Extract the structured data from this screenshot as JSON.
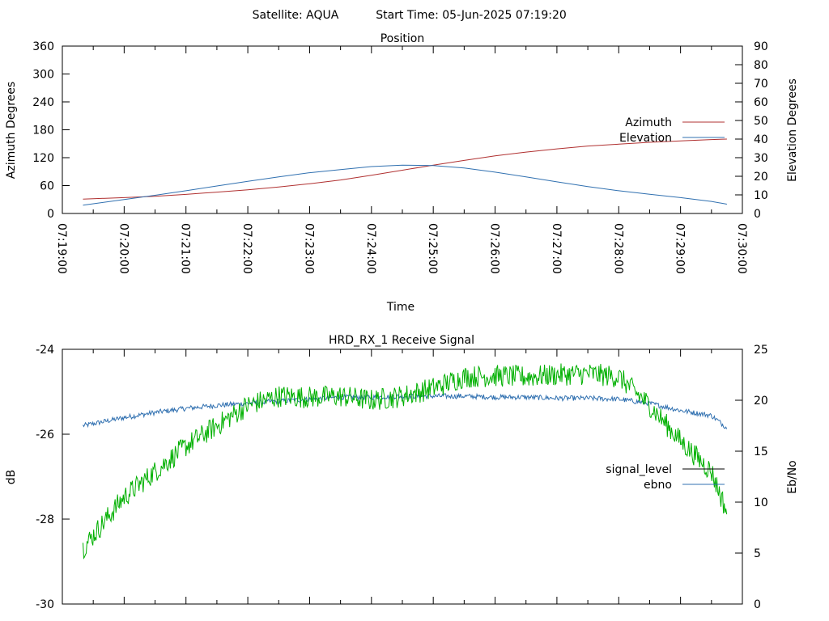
{
  "header": {
    "satellite": "Satellite: AQUA",
    "start_time": "Start Time: 05-Jun-2025 07:19:20"
  },
  "chart_data": [
    {
      "type": "line",
      "title": "Position",
      "xlabel": "Time",
      "ylabel": "Azimuth Degrees",
      "y2label": "Elevation Degrees",
      "x_ticks": [
        "07:19:00",
        "07:20:00",
        "07:21:00",
        "07:22:00",
        "07:23:00",
        "07:24:00",
        "07:25:00",
        "07:26:00",
        "07:27:00",
        "07:28:00",
        "07:29:00",
        "07:30:00"
      ],
      "xlim": [
        "07:19:00",
        "07:30:00"
      ],
      "ylim": [
        0,
        360
      ],
      "y_ticks": [
        0,
        60,
        120,
        180,
        240,
        300,
        360
      ],
      "y2lim": [
        0,
        90
      ],
      "y2_ticks": [
        0,
        10,
        20,
        30,
        40,
        50,
        60,
        70,
        80,
        90
      ],
      "legend_position": "right",
      "series": [
        {
          "name": "Azimuth",
          "axis": "y",
          "color": "#b03030",
          "x": [
            "07:19:20",
            "07:20:00",
            "07:20:30",
            "07:21:00",
            "07:21:30",
            "07:22:00",
            "07:22:30",
            "07:23:00",
            "07:23:30",
            "07:24:00",
            "07:24:30",
            "07:25:00",
            "07:25:30",
            "07:26:00",
            "07:26:30",
            "07:27:00",
            "07:27:30",
            "07:28:00",
            "07:28:30",
            "07:29:00",
            "07:29:30",
            "07:29:45"
          ],
          "values": [
            31,
            34,
            37,
            41,
            46,
            51,
            57,
            64,
            72,
            82,
            93,
            104,
            114,
            124,
            132,
            139,
            145,
            149,
            153,
            156,
            159,
            160
          ]
        },
        {
          "name": "Elevation",
          "axis": "y2",
          "color": "#3070b0",
          "x": [
            "07:19:20",
            "07:20:00",
            "07:20:30",
            "07:21:00",
            "07:21:30",
            "07:22:00",
            "07:22:30",
            "07:23:00",
            "07:23:30",
            "07:24:00",
            "07:24:30",
            "07:25:00",
            "07:25:30",
            "07:26:00",
            "07:26:30",
            "07:27:00",
            "07:27:30",
            "07:28:00",
            "07:28:30",
            "07:29:00",
            "07:29:30",
            "07:29:45"
          ],
          "values": [
            4.5,
            7.5,
            9.8,
            12.2,
            14.8,
            17.3,
            19.7,
            21.9,
            23.6,
            25.2,
            26,
            25.8,
            24.5,
            22.2,
            19.7,
            17,
            14.5,
            12.2,
            10.3,
            8.5,
            6.5,
            5
          ]
        }
      ]
    },
    {
      "type": "line",
      "title": "HRD_RX_1 Receive Signal",
      "xlabel": "",
      "ylabel": "dB",
      "y2label": "Eb/No",
      "xlim": [
        "07:19:00",
        "07:30:00"
      ],
      "ylim": [
        -30,
        -24
      ],
      "y_ticks": [
        -30,
        -28,
        -26,
        -24
      ],
      "y2lim": [
        0,
        25
      ],
      "y2_ticks": [
        0,
        5,
        10,
        15,
        20,
        25
      ],
      "legend_position": "right",
      "series": [
        {
          "name": "signal_level",
          "axis": "y",
          "color": "#000000",
          "x": [],
          "values": []
        },
        {
          "name": "ebno",
          "axis": "y2",
          "color": "#3070b0",
          "x": [
            "07:19:20",
            "07:20:00",
            "07:20:30",
            "07:21:00",
            "07:21:30",
            "07:22:00",
            "07:22:30",
            "07:23:00",
            "07:23:30",
            "07:24:00",
            "07:24:30",
            "07:25:00",
            "07:25:30",
            "07:26:00",
            "07:26:30",
            "07:27:00",
            "07:27:30",
            "07:28:00",
            "07:28:30",
            "07:29:00",
            "07:29:30",
            "07:29:45"
          ],
          "values": [
            17.5,
            18.3,
            18.8,
            19.2,
            19.5,
            19.7,
            19.9,
            20.1,
            20.3,
            20.3,
            20.4,
            20.4,
            20.4,
            20.3,
            20.3,
            20.2,
            20.2,
            20.1,
            19.7,
            19.0,
            18.5,
            17.3
          ]
        },
        {
          "name": "",
          "axis": "y2",
          "color": "#00b000",
          "x": [
            "07:19:20",
            "07:19:40",
            "07:20:00",
            "07:20:30",
            "07:21:00",
            "07:21:30",
            "07:22:00",
            "07:22:30",
            "07:23:00",
            "07:23:30",
            "07:24:00",
            "07:24:30",
            "07:25:00",
            "07:25:30",
            "07:26:00",
            "07:26:30",
            "07:27:00",
            "07:27:30",
            "07:28:00",
            "07:28:30",
            "07:29:00",
            "07:29:30",
            "07:29:45"
          ],
          "values": [
            5.5,
            8,
            10.5,
            13,
            15.5,
            17.5,
            19.5,
            20.4,
            20.3,
            20.4,
            20,
            20.4,
            21.2,
            22.3,
            22.4,
            22.3,
            22.5,
            22.6,
            22.3,
            19.5,
            16,
            13,
            9
          ]
        }
      ]
    }
  ]
}
